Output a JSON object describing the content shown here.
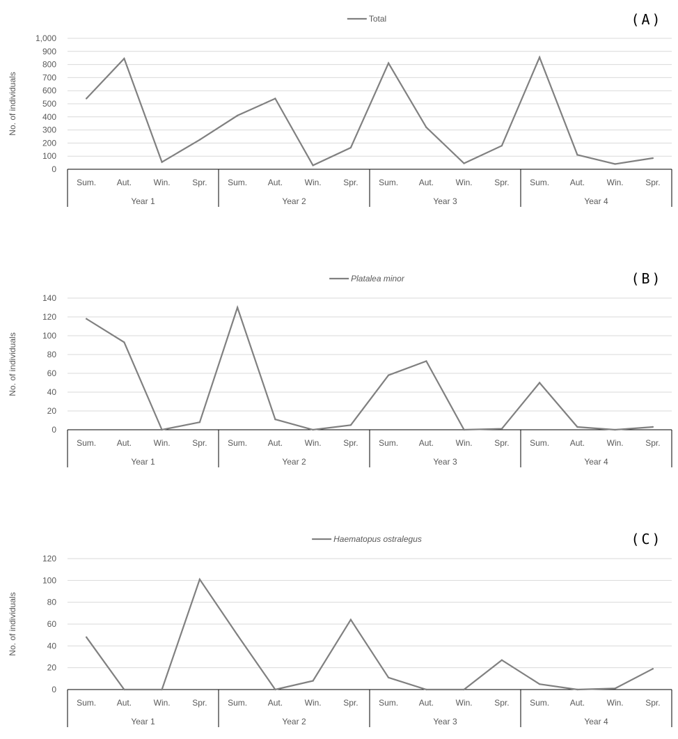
{
  "chart_data": [
    {
      "type": "line",
      "panel_label": "(A)",
      "legend": "Total",
      "legend_italic": false,
      "ylabel": "No. of individuals",
      "ylim": [
        0,
        1000
      ],
      "yticks": [
        "0",
        "100",
        "200",
        "300",
        "400",
        "500",
        "600",
        "700",
        "800",
        "900",
        "1,000"
      ],
      "grid": true,
      "legend_position": "top-center",
      "seasons": [
        "Sum.",
        "Aut.",
        "Win.",
        "Spr.",
        "Sum.",
        "Aut.",
        "Win.",
        "Spr.",
        "Sum.",
        "Aut.",
        "Win.",
        "Spr.",
        "Sum.",
        "Aut.",
        "Win.",
        "Spr."
      ],
      "years": [
        "Year 1",
        "Year 2",
        "Year 3",
        "Year 4"
      ],
      "series": [
        {
          "name": "Total",
          "color": "#808080",
          "values": [
            540,
            845,
            55,
            225,
            410,
            540,
            30,
            165,
            810,
            320,
            45,
            180,
            855,
            110,
            40,
            85
          ]
        }
      ]
    },
    {
      "type": "line",
      "panel_label": "(B)",
      "legend": "Platalea minor",
      "legend_italic": true,
      "ylabel": "No. of individuals",
      "ylim": [
        0,
        140
      ],
      "yticks": [
        "0",
        "20",
        "40",
        "60",
        "80",
        "100",
        "120",
        "140"
      ],
      "grid": true,
      "legend_position": "top-center",
      "seasons": [
        "Sum.",
        "Aut.",
        "Win.",
        "Spr.",
        "Sum.",
        "Aut.",
        "Win.",
        "Spr.",
        "Sum.",
        "Aut.",
        "Win.",
        "Spr.",
        "Sum.",
        "Aut.",
        "Win.",
        "Spr."
      ],
      "years": [
        "Year 1",
        "Year 2",
        "Year 3",
        "Year 4"
      ],
      "series": [
        {
          "name": "Platalea minor",
          "color": "#808080",
          "values": [
            118,
            93,
            0,
            8,
            130,
            11,
            0,
            5,
            58,
            73,
            0,
            1,
            50,
            3,
            0,
            3
          ]
        }
      ]
    },
    {
      "type": "line",
      "panel_label": "(C)",
      "legend": "Haematopus ostralegus",
      "legend_italic": true,
      "ylabel": "No. of individuals",
      "ylim": [
        0,
        120
      ],
      "yticks": [
        "0",
        "20",
        "40",
        "60",
        "80",
        "100",
        "120"
      ],
      "grid": true,
      "legend_position": "top-center",
      "seasons": [
        "Sum.",
        "Aut.",
        "Win.",
        "Spr.",
        "Sum.",
        "Aut.",
        "Win.",
        "Spr.",
        "Sum.",
        "Aut.",
        "Win.",
        "Spr.",
        "Sum.",
        "Aut.",
        "Win.",
        "Spr."
      ],
      "years": [
        "Year 1",
        "Year 2",
        "Year 3",
        "Year 4"
      ],
      "series": [
        {
          "name": "Haematopus ostralegus",
          "color": "#808080",
          "values": [
            48,
            0,
            0,
            101,
            50,
            0,
            8,
            64,
            11,
            0,
            0,
            27,
            5,
            0,
            1,
            19
          ]
        }
      ]
    }
  ]
}
